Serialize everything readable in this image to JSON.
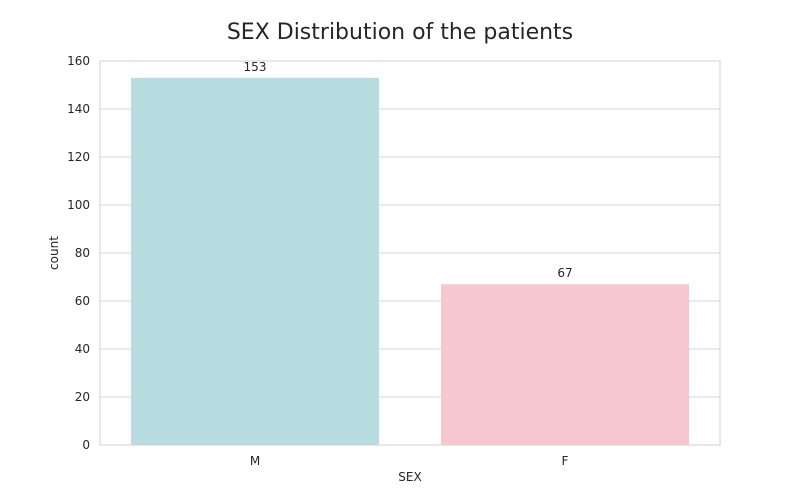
{
  "chart_data": {
    "type": "bar",
    "title": "SEX Distribution of the patients",
    "xlabel": "SEX",
    "ylabel": "count",
    "categories": [
      "M",
      "F"
    ],
    "values": [
      153,
      67
    ],
    "data_labels": [
      "153",
      "67"
    ],
    "yticks": [
      0,
      20,
      40,
      60,
      80,
      100,
      120,
      140,
      160
    ],
    "ylim": [
      0,
      160
    ],
    "grid": true,
    "bar_colors": [
      "#b7dde1",
      "#f7c7d0"
    ],
    "frame_color": "#d0d0d0"
  }
}
